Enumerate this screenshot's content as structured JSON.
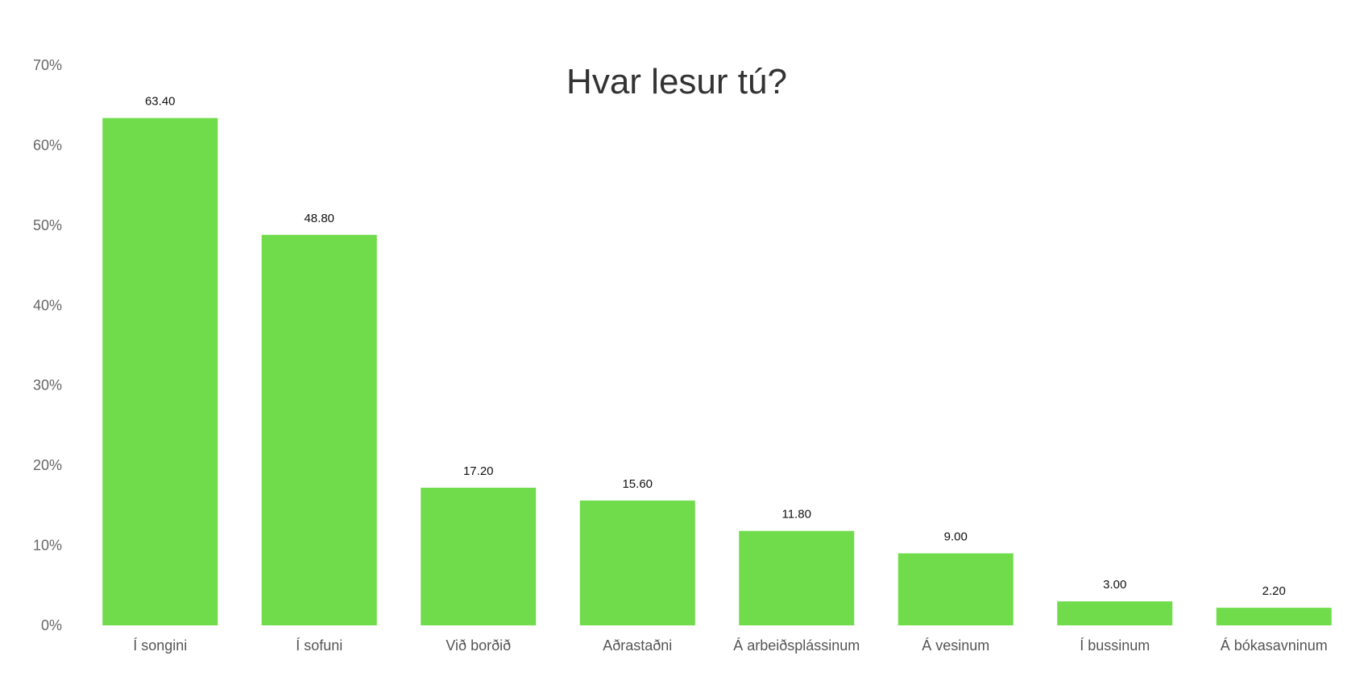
{
  "chart_data": {
    "type": "bar",
    "title": "Hvar lesur tú?",
    "xlabel": "",
    "ylabel": "",
    "categories": [
      "Í songini",
      "Í sofuni",
      "Við borðið",
      "Aðrastaðni",
      "Á arbeiðsplássinum",
      "Á vesinum",
      "Í bussinum",
      "Á bókasavninum"
    ],
    "values": [
      63.4,
      48.8,
      17.2,
      15.6,
      11.8,
      9.0,
      3.0,
      2.2
    ],
    "value_labels": [
      "63.40",
      "48.80",
      "17.20",
      "15.60",
      "11.80",
      "9.00",
      "3.00",
      "2.20"
    ],
    "ylim": [
      0,
      70
    ],
    "y_ticks": [
      0,
      10,
      20,
      30,
      40,
      50,
      60,
      70
    ],
    "y_tick_labels": [
      "0%",
      "10%",
      "20%",
      "30%",
      "40%",
      "50%",
      "60%",
      "70%"
    ],
    "grid": false,
    "legend": "none",
    "colors": {
      "bar": "#70dc4b",
      "title": "#333333",
      "axis_text": "#666666",
      "data_label": "#111111"
    }
  }
}
